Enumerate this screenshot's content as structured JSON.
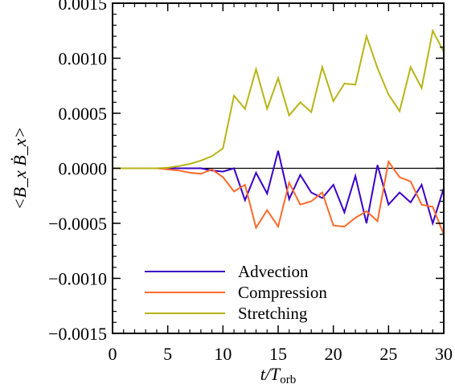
{
  "chart_data": {
    "type": "line",
    "title": "",
    "xlabel": "t/T",
    "xlabel_sub": "orb",
    "ylabel": "<B_x Ḃ_x>",
    "xlim": [
      0,
      30
    ],
    "ylim": [
      -0.0015,
      0.0015
    ],
    "xticks": [
      0,
      5,
      10,
      15,
      20,
      25,
      30
    ],
    "xtick_labels": [
      "0",
      "5",
      "10",
      "15",
      "20",
      "25",
      "30"
    ],
    "yticks": [
      0.0015,
      0.001,
      0.0005,
      0.0,
      -0.0005,
      -0.001,
      -0.0015
    ],
    "ytick_labels": [
      "0.0015",
      "0.0010",
      "0.0005",
      "0.0000",
      "−0.0005",
      "−0.0010",
      "−0.0015"
    ],
    "zero_line": true,
    "grid": false,
    "legend_position": "bottom-left",
    "x": [
      0,
      1,
      2,
      3,
      4,
      5,
      6,
      7,
      8,
      9,
      10,
      11,
      12,
      13,
      14,
      15,
      16,
      17,
      18,
      19,
      20,
      21,
      22,
      23,
      24,
      25,
      26,
      27,
      28,
      29,
      30
    ],
    "series": [
      {
        "name": "Advection",
        "color": "#3a00c8",
        "values": [
          0,
          0,
          0,
          0,
          0,
          0,
          0,
          0,
          0,
          -2e-05,
          -3e-05,
          0,
          -0.00029,
          -4e-05,
          -0.00023,
          0.00016,
          -0.00028,
          -6e-05,
          -0.00022,
          -0.00027,
          -0.00015,
          -0.0004,
          -7e-05,
          -0.0005,
          3e-05,
          -0.00033,
          -0.00022,
          -0.00031,
          -0.00015,
          -0.0005,
          -0.00018
        ]
      },
      {
        "name": "Compression",
        "color": "#ff6a2b",
        "values": [
          0,
          0,
          0,
          0,
          0,
          -1e-05,
          -2e-05,
          -4e-05,
          -5e-05,
          -1e-05,
          -8e-05,
          -0.00021,
          -0.00015,
          -0.00054,
          -0.00038,
          -0.00053,
          -0.00013,
          -0.00033,
          -0.0003,
          -0.00022,
          -0.00052,
          -0.00053,
          -0.00045,
          -0.00039,
          -0.00048,
          6e-05,
          -8e-05,
          -0.00012,
          -0.00033,
          -0.00035,
          -0.0006
        ]
      },
      {
        "name": "Stretching",
        "color": "#b8b418",
        "values": [
          0,
          0,
          0,
          0,
          0,
          5e-06,
          2e-05,
          4e-05,
          7e-05,
          0.00011,
          0.00018,
          0.00066,
          0.00054,
          0.0009,
          0.00054,
          0.00082,
          0.00048,
          0.0006,
          0.00051,
          0.00092,
          0.00061,
          0.00077,
          0.00076,
          0.0012,
          0.00091,
          0.00067,
          0.00052,
          0.00092,
          0.00073,
          0.00125,
          0.00106
        ]
      }
    ]
  }
}
